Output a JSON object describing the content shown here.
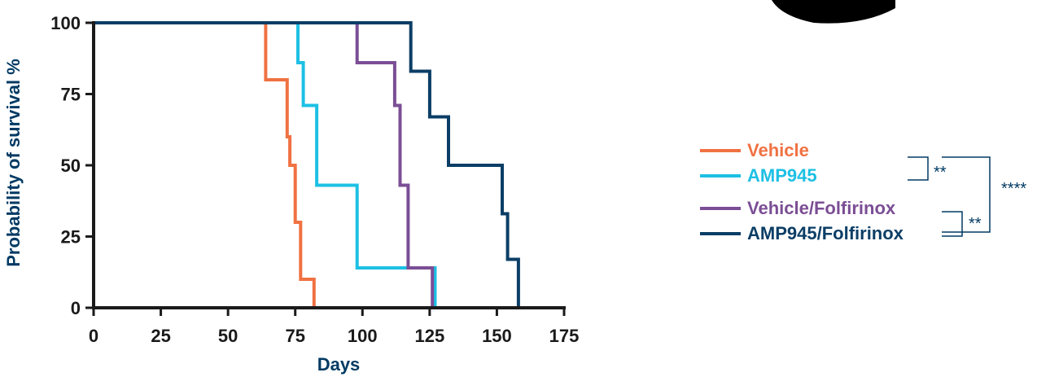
{
  "chart_data": {
    "type": "line",
    "step": true,
    "xlabel": "Days",
    "ylabel": "Probability of survival %",
    "xlim": [
      0,
      175
    ],
    "ylim": [
      0,
      100
    ],
    "xticks": [
      "0",
      "25",
      "50",
      "75",
      "100",
      "125",
      "150",
      "175"
    ],
    "yticks": [
      "0",
      "25",
      "50",
      "75",
      "100"
    ],
    "grid": false,
    "legend_position": "right",
    "series": [
      {
        "name": "Vehicle",
        "color": "#f07142",
        "points": [
          [
            0,
            100
          ],
          [
            64,
            100
          ],
          [
            64,
            80
          ],
          [
            72,
            80
          ],
          [
            72,
            60
          ],
          [
            73,
            60
          ],
          [
            73,
            50
          ],
          [
            75,
            50
          ],
          [
            75,
            30
          ],
          [
            77,
            30
          ],
          [
            77,
            10
          ],
          [
            82,
            10
          ],
          [
            82,
            0
          ]
        ]
      },
      {
        "name": "AMP945",
        "color": "#1dc0e4",
        "points": [
          [
            0,
            100
          ],
          [
            76,
            100
          ],
          [
            76,
            86
          ],
          [
            78,
            86
          ],
          [
            78,
            71
          ],
          [
            83,
            71
          ],
          [
            83,
            43
          ],
          [
            98,
            43
          ],
          [
            98,
            14
          ],
          [
            127,
            14
          ],
          [
            127,
            0
          ]
        ]
      },
      {
        "name": "Vehicle/Folfirinox",
        "color": "#7b4e95",
        "points": [
          [
            0,
            100
          ],
          [
            98,
            100
          ],
          [
            98,
            86
          ],
          [
            112,
            86
          ],
          [
            112,
            71
          ],
          [
            114,
            71
          ],
          [
            114,
            43
          ],
          [
            117,
            43
          ],
          [
            117,
            14
          ],
          [
            126,
            14
          ],
          [
            126,
            0
          ]
        ]
      },
      {
        "name": "AMP945/Folfirinox",
        "color": "#0b3e66",
        "points": [
          [
            0,
            100
          ],
          [
            118,
            100
          ],
          [
            118,
            83
          ],
          [
            125,
            83
          ],
          [
            125,
            67
          ],
          [
            132,
            67
          ],
          [
            132,
            50
          ],
          [
            152,
            50
          ],
          [
            152,
            33
          ],
          [
            154,
            33
          ],
          [
            154,
            17
          ],
          [
            158,
            17
          ],
          [
            158,
            0
          ]
        ]
      }
    ],
    "annotations": [
      {
        "label": "**",
        "between": [
          "Vehicle",
          "AMP945"
        ]
      },
      {
        "label": "****",
        "between": [
          "Vehicle",
          "AMP945/Folfirinox"
        ]
      },
      {
        "label": "**",
        "between": [
          "Vehicle/Folfirinox",
          "AMP945/Folfirinox"
        ]
      }
    ],
    "colors": {
      "axis": "#1a1a1a",
      "axis_title": "#003a63",
      "significance": "#003a63"
    }
  }
}
